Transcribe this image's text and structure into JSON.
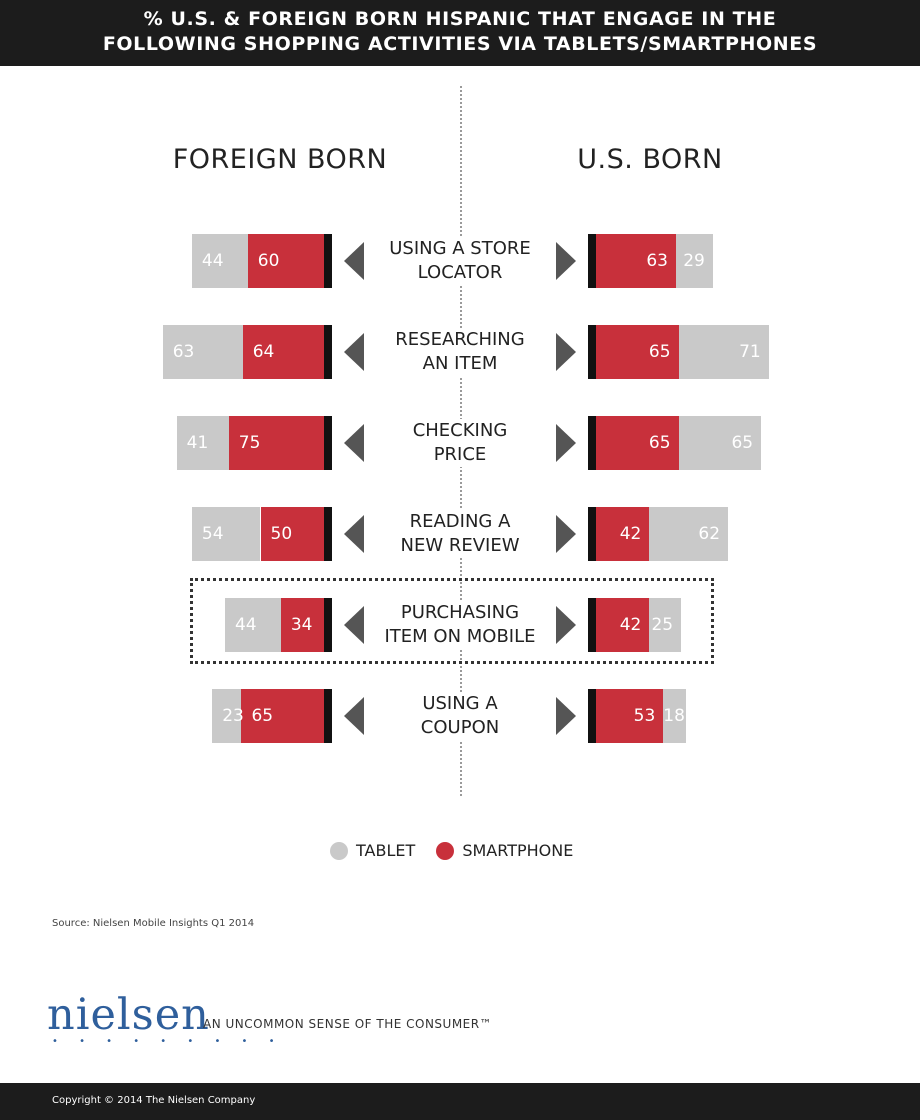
{
  "header": {
    "title_line1": "% U.S. & FOREIGN BORN HISPANIC THAT ENGAGE IN THE",
    "title_line2": "FOLLOWING SHOPPING ACTIVITIES VIA TABLETS/SMARTPHONES"
  },
  "columns": {
    "left": "FOREIGN BORN",
    "right": "U.S. BORN"
  },
  "colors": {
    "tablet": "#c9c9c9",
    "smartphone": "#c8303b",
    "cap": "#111111",
    "arrow": "#555555"
  },
  "chart_data": {
    "type": "bar",
    "orientation": "horizontal-diverging",
    "groups": [
      "FOREIGN BORN",
      "U.S. BORN"
    ],
    "categories": [
      [
        "USING A STORE",
        "LOCATOR"
      ],
      [
        "RESEARCHING",
        "AN ITEM"
      ],
      [
        "CHECKING",
        "PRICE"
      ],
      [
        "READING A",
        "NEW REVIEW"
      ],
      [
        "PURCHASING",
        "ITEM ON MOBILE"
      ],
      [
        "USING A",
        "COUPON"
      ]
    ],
    "series": [
      {
        "name": "TABLET",
        "foreign_born": [
          44,
          63,
          41,
          54,
          44,
          23
        ],
        "us_born": [
          29,
          71,
          65,
          62,
          25,
          18
        ]
      },
      {
        "name": "SMARTPHONE",
        "foreign_born": [
          60,
          64,
          75,
          50,
          34,
          65
        ],
        "us_born": [
          63,
          65,
          65,
          42,
          42,
          53
        ]
      }
    ],
    "highlighted_category_index": 4,
    "legend": [
      "TABLET",
      "SMARTPHONE"
    ]
  },
  "footer": {
    "source": "Source: Nielsen Mobile Insights Q1 2014",
    "brand": "nielsen",
    "tagline": "AN UNCOMMON SENSE OF THE CONSUMER™",
    "copyright": "Copyright © 2014 The Nielsen Company"
  }
}
